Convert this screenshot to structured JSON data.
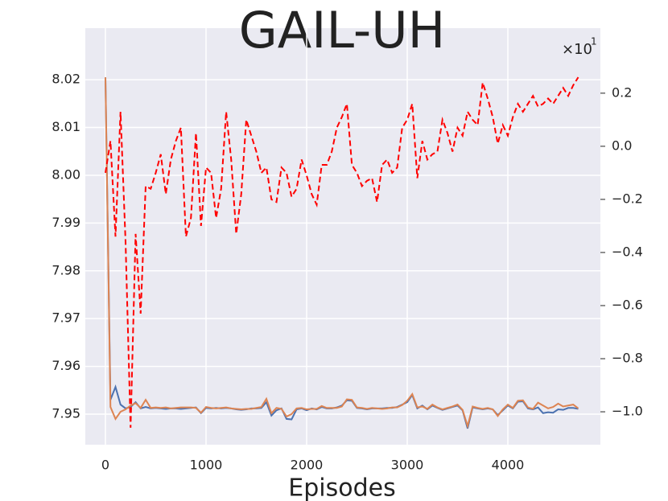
{
  "chart_data": {
    "type": "line",
    "title": "GAIL-UH",
    "xlabel": "Episodes",
    "y2_offset_text": "×10",
    "y2_offset_exponent": "1",
    "background": "#eaeaf2",
    "grid": true,
    "xlim": [
      -200,
      4920
    ],
    "xticks": [
      0,
      1000,
      2000,
      3000,
      4000
    ],
    "ylim": [
      7.9436,
      8.0308
    ],
    "yticks": [
      {
        "value": 7.95,
        "label": "7.95"
      },
      7.96,
      7.97,
      7.98,
      7.99,
      {
        "value": 8.0,
        "label": "8.00"
      },
      8.01,
      8.02
    ],
    "y2lim": [
      -1.124,
      0.445
    ],
    "y2ticks": [
      {
        "value": -1.0,
        "label": "−1.0"
      },
      {
        "value": -0.8,
        "label": "−0.8"
      },
      {
        "value": -0.6,
        "label": "−0.6"
      },
      {
        "value": -0.4,
        "label": "−0.4"
      },
      {
        "value": -0.2,
        "label": "−0.2"
      },
      {
        "value": 0.0,
        "label": "0.0"
      },
      0.2
    ],
    "x": [
      0,
      50,
      100,
      150,
      200,
      250,
      300,
      350,
      400,
      450,
      500,
      550,
      600,
      650,
      700,
      750,
      800,
      850,
      900,
      950,
      1000,
      1050,
      1100,
      1150,
      1200,
      1250,
      1300,
      1350,
      1400,
      1450,
      1500,
      1550,
      1600,
      1650,
      1700,
      1750,
      1800,
      1850,
      1900,
      1950,
      2000,
      2050,
      2100,
      2150,
      2200,
      2250,
      2300,
      2350,
      2400,
      2450,
      2500,
      2550,
      2600,
      2650,
      2700,
      2750,
      2800,
      2850,
      2900,
      2950,
      3000,
      3050,
      3100,
      3150,
      3200,
      3250,
      3300,
      3350,
      3400,
      3450,
      3500,
      3550,
      3600,
      3650,
      3700,
      3750,
      3800,
      3850,
      3900,
      3950,
      4000,
      4050,
      4100,
      4150,
      4200,
      4250,
      4300,
      4350,
      4400,
      4450,
      4500,
      4550,
      4600,
      4650,
      4700
    ],
    "series": [
      {
        "color": "#4c72b0",
        "linestyle": "solid",
        "axis": "y",
        "values": [
          8.0205,
          7.953,
          7.9557,
          7.952,
          7.9512,
          7.9515,
          7.9525,
          7.9512,
          7.9515,
          7.9512,
          7.9513,
          7.9512,
          7.9511,
          7.9512,
          7.9512,
          7.9511,
          7.9512,
          7.9513,
          7.9514,
          7.9502,
          7.9513,
          7.9512,
          7.9513,
          7.9512,
          7.9513,
          7.9512,
          7.951,
          7.9509,
          7.951,
          7.9512,
          7.9512,
          7.9513,
          7.9525,
          7.9497,
          7.9508,
          7.9512,
          7.949,
          7.9489,
          7.951,
          7.9512,
          7.9508,
          7.9512,
          7.951,
          7.9515,
          7.9512,
          7.9512,
          7.9514,
          7.9518,
          7.9529,
          7.9528,
          7.9513,
          7.9512,
          7.951,
          7.9512,
          7.9512,
          7.9512,
          7.9513,
          7.9513,
          7.9515,
          7.952,
          7.9525,
          7.954,
          7.9512,
          7.9518,
          7.951,
          7.9518,
          7.9513,
          7.9509,
          7.9512,
          7.9515,
          7.9518,
          7.9508,
          7.947,
          7.9514,
          7.9512,
          7.951,
          7.9512,
          7.951,
          7.9498,
          7.9508,
          7.9518,
          7.9512,
          7.9526,
          7.9527,
          7.9512,
          7.951,
          7.9514,
          7.9502,
          7.9504,
          7.9503,
          7.951,
          7.9509,
          7.9513,
          7.9513,
          7.9511
        ]
      },
      {
        "color": "#dd8452",
        "linestyle": "solid",
        "axis": "y",
        "values": [
          8.0205,
          7.9515,
          7.949,
          7.9505,
          7.951,
          7.9518,
          7.9523,
          7.9513,
          7.953,
          7.9513,
          7.9514,
          7.9513,
          7.9514,
          7.9512,
          7.9513,
          7.9514,
          7.9514,
          7.9514,
          7.9513,
          7.9503,
          7.9515,
          7.9513,
          7.9512,
          7.9513,
          7.9514,
          7.9512,
          7.9511,
          7.951,
          7.9511,
          7.9511,
          7.9513,
          7.9515,
          7.9532,
          7.9502,
          7.9513,
          7.9511,
          7.9495,
          7.95,
          7.9512,
          7.9513,
          7.951,
          7.9511,
          7.9511,
          7.9517,
          7.9513,
          7.9513,
          7.9513,
          7.9516,
          7.9531,
          7.953,
          7.9514,
          7.9513,
          7.9511,
          7.9513,
          7.9512,
          7.9511,
          7.9512,
          7.9514,
          7.9514,
          7.9519,
          7.9528,
          7.9542,
          7.9514,
          7.9516,
          7.9511,
          7.952,
          7.9514,
          7.951,
          7.9513,
          7.9516,
          7.952,
          7.9509,
          7.9475,
          7.9516,
          7.9513,
          7.9511,
          7.9513,
          7.951,
          7.9496,
          7.951,
          7.952,
          7.9513,
          7.9528,
          7.9529,
          7.9514,
          7.9511,
          7.9524,
          7.9518,
          7.9512,
          7.9515,
          7.9522,
          7.9516,
          7.9518,
          7.952,
          7.9512
        ]
      },
      {
        "color": "#ff0000",
        "linestyle": "dashed",
        "axis": "y2",
        "values": [
          -0.1,
          0.02,
          -0.34,
          0.13,
          -0.36,
          -1.06,
          -0.33,
          -0.63,
          -0.15,
          -0.16,
          -0.1,
          -0.03,
          -0.18,
          -0.05,
          0.02,
          0.07,
          -0.34,
          -0.27,
          0.05,
          -0.3,
          -0.08,
          -0.1,
          -0.27,
          -0.16,
          0.13,
          -0.05,
          -0.33,
          -0.18,
          0.1,
          0.04,
          -0.02,
          -0.1,
          -0.08,
          -0.2,
          -0.21,
          -0.08,
          -0.1,
          -0.19,
          -0.16,
          -0.05,
          -0.11,
          -0.18,
          -0.22,
          -0.07,
          -0.07,
          -0.02,
          0.07,
          0.11,
          0.16,
          -0.07,
          -0.1,
          -0.15,
          -0.13,
          -0.12,
          -0.21,
          -0.07,
          -0.05,
          -0.1,
          -0.08,
          0.07,
          0.1,
          0.16,
          -0.12,
          0.02,
          -0.05,
          -0.03,
          -0.02,
          0.1,
          0.05,
          -0.02,
          0.07,
          0.04,
          0.13,
          0.1,
          0.08,
          0.24,
          0.18,
          0.11,
          0.01,
          0.08,
          0.04,
          0.11,
          0.16,
          0.13,
          0.16,
          0.19,
          0.15,
          0.16,
          0.18,
          0.16,
          0.19,
          0.22,
          0.19,
          0.23,
          0.26
        ]
      }
    ]
  }
}
